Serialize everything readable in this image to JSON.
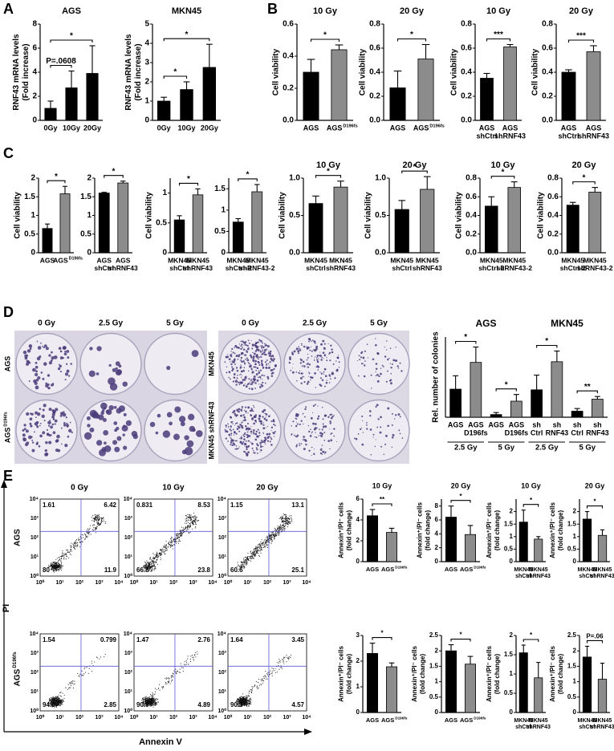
{
  "panel_labels": [
    "A",
    "B",
    "C",
    "D",
    "E"
  ],
  "chart_data": [
    {
      "type": "bar",
      "title": "AGS",
      "y_label": [
        "RNF43 mRNA levels",
        "(Fold increase)"
      ],
      "categories": [
        [
          "0Gy"
        ],
        [
          "10Gy"
        ],
        [
          "20Gy"
        ]
      ],
      "values": [
        1.0,
        2.7,
        3.9
      ],
      "errors": [
        0.6,
        1.4,
        2.3
      ],
      "colors": [
        "#000000",
        "#000000",
        "#000000"
      ],
      "ylim": [
        0,
        8
      ],
      "yticks": [
        0,
        2,
        4,
        6,
        8
      ],
      "annotations": [
        {
          "text": "P=.0608",
          "between": [
            0,
            1
          ]
        },
        {
          "text": "*",
          "between": [
            0,
            2
          ]
        }
      ]
    },
    {
      "type": "bar",
      "title": "MKN45",
      "y_label": [
        "RNF43 mRNA levels",
        "(Fold increase)"
      ],
      "categories": [
        [
          "0Gy"
        ],
        [
          "10Gy"
        ],
        [
          "20Gy"
        ]
      ],
      "values": [
        1.0,
        1.6,
        2.75
      ],
      "errors": [
        0.2,
        0.4,
        1.2
      ],
      "colors": [
        "#000000",
        "#000000",
        "#000000"
      ],
      "ylim": [
        0,
        5
      ],
      "yticks": [
        0,
        1,
        2,
        3,
        4,
        5
      ],
      "annotations": [
        {
          "text": "*",
          "between": [
            0,
            1
          ]
        },
        {
          "text": "*",
          "between": [
            0,
            2
          ]
        }
      ]
    },
    {
      "type": "bar",
      "title": "10 Gy",
      "y_label": [
        "Cell viability"
      ],
      "categories": [
        [
          "AGS"
        ],
        [
          "AGS"
        ]
      ],
      "sup": [
        null,
        "D196fs"
      ],
      "values": [
        0.3,
        0.44
      ],
      "errors": [
        0.08,
        0.03
      ],
      "colors": [
        "#000000",
        "#8c8c8c"
      ],
      "ylim": [
        0,
        0.6
      ],
      "yticks": [
        {
          "value": 0,
          "label": "0.0"
        },
        0.2,
        0.4,
        0.6
      ],
      "annotations": [
        {
          "text": "*",
          "between": [
            0,
            1
          ]
        }
      ]
    },
    {
      "type": "bar",
      "title": "20 Gy",
      "y_label": [
        "Cell viability"
      ],
      "categories": [
        [
          "AGS"
        ],
        [
          "AGS"
        ]
      ],
      "sup": [
        null,
        "D196fs"
      ],
      "values": [
        0.27,
        0.51
      ],
      "errors": [
        0.14,
        0.12
      ],
      "colors": [
        "#000000",
        "#8c8c8c"
      ],
      "ylim": [
        0,
        0.8
      ],
      "yticks": [
        {
          "value": 0,
          "label": "0.0"
        },
        0.2,
        0.4,
        0.6,
        0.8
      ],
      "annotations": [
        {
          "text": "*",
          "between": [
            0,
            1
          ]
        }
      ]
    },
    {
      "type": "bar",
      "title": "10 Gy",
      "y_label": [
        "Cell viability"
      ],
      "categories": [
        [
          "AGS",
          "shCtrl"
        ],
        [
          "AGS",
          "shRNF43"
        ]
      ],
      "values": [
        0.35,
        0.61
      ],
      "errors": [
        0.04,
        0.02
      ],
      "colors": [
        "#000000",
        "#8c8c8c"
      ],
      "ylim": [
        0,
        0.8
      ],
      "yticks": [
        {
          "value": 0,
          "label": "0.0"
        },
        0.2,
        0.4,
        0.6,
        0.8
      ],
      "annotations": [
        {
          "text": "***",
          "between": [
            0,
            1
          ]
        }
      ]
    },
    {
      "type": "bar",
      "title": "20 Gy",
      "y_label": [
        "Cell viability"
      ],
      "categories": [
        [
          "AGS",
          "shCtrl"
        ],
        [
          "AGS",
          "shRNF43"
        ]
      ],
      "values": [
        0.4,
        0.57
      ],
      "errors": [
        0.02,
        0.05
      ],
      "colors": [
        "#000000",
        "#8c8c8c"
      ],
      "ylim": [
        0,
        0.8
      ],
      "yticks": [
        {
          "value": 0,
          "label": "0.0"
        },
        0.2,
        0.4,
        0.6,
        0.8
      ],
      "annotations": [
        {
          "text": "***",
          "between": [
            0,
            1
          ]
        }
      ]
    },
    {
      "type": "bar",
      "y_label": [
        "Cell viability"
      ],
      "categories": [
        [
          "AGS"
        ],
        [
          "AGS"
        ]
      ],
      "sup": [
        null,
        "D196fs"
      ],
      "values": [
        0.65,
        1.58
      ],
      "errors": [
        0.12,
        0.2
      ],
      "colors": [
        "#000000",
        "#8c8c8c"
      ],
      "ylim": [
        0,
        2
      ],
      "yticks": [
        0,
        0.5,
        1,
        1.5,
        2
      ],
      "annotations": [
        {
          "text": "*",
          "between": [
            0,
            1
          ]
        }
      ]
    },
    {
      "type": "bar",
      "categories": [
        [
          "AGS",
          "shCtrl"
        ],
        [
          "AGS",
          "shRNF43"
        ]
      ],
      "values": [
        1.6,
        1.87
      ],
      "errors": [
        0.02,
        0.05
      ],
      "colors": [
        "#000000",
        "#8c8c8c"
      ],
      "ylim": [
        0,
        2
      ],
      "yticks": [
        0,
        0.5,
        1,
        1.5,
        2
      ],
      "annotations": [
        {
          "text": "*",
          "between": [
            0,
            1
          ]
        }
      ]
    },
    {
      "type": "bar",
      "y_label": [
        "Cell viability"
      ],
      "categories": [
        [
          "MKN45",
          "shCtrl"
        ],
        [
          "MKN45",
          "shRNF43"
        ]
      ],
      "values": [
        0.55,
        0.97
      ],
      "errors": [
        0.07,
        0.1
      ],
      "colors": [
        "#000000",
        "#8c8c8c"
      ],
      "ylim": [
        0,
        1.25
      ],
      "yticks": [
        0,
        0.5,
        1
      ],
      "annotations": [
        {
          "text": "*",
          "between": [
            0,
            1
          ]
        }
      ]
    },
    {
      "type": "bar",
      "categories": [
        [
          "MKN45",
          "shCtrl-2"
        ],
        [
          "MKN45",
          "shRNF43-2"
        ]
      ],
      "values": [
        0.72,
        1.43
      ],
      "errors": [
        0.08,
        0.17
      ],
      "colors": [
        "#000000",
        "#8c8c8c"
      ],
      "ylim": [
        0,
        1.75
      ],
      "yticks": [
        0,
        0.5,
        1,
        1.5
      ],
      "annotations": [
        {
          "text": "*",
          "between": [
            0,
            1
          ]
        }
      ]
    },
    {
      "type": "bar",
      "title": "10 Gy",
      "y_label": [
        "Cell viability"
      ],
      "categories": [
        [
          "MKN45",
          "shCtrl"
        ],
        [
          "MKN45",
          "shRNF43"
        ]
      ],
      "values": [
        0.66,
        0.88
      ],
      "errors": [
        0.1,
        0.08
      ],
      "colors": [
        "#000000",
        "#8c8c8c"
      ],
      "ylim": [
        0,
        1
      ],
      "yticks": [
        {
          "value": 0,
          "label": "0.0"
        },
        0.5,
        {
          "value": 1,
          "label": "1.0"
        }
      ],
      "annotations": [
        {
          "text": "*",
          "between": [
            0,
            1
          ]
        }
      ]
    },
    {
      "type": "bar",
      "title": "20 Gy",
      "y_label": [
        "Cell viability"
      ],
      "categories": [
        [
          "MKN45",
          "shCtrl"
        ],
        [
          "MKN45",
          "shRNF43"
        ]
      ],
      "values": [
        0.58,
        0.85
      ],
      "errors": [
        0.12,
        0.17
      ],
      "colors": [
        "#000000",
        "#8c8c8c"
      ],
      "ylim": [
        0,
        1
      ],
      "yticks": [
        {
          "value": 0,
          "label": "0.0"
        },
        0.5,
        {
          "value": 1,
          "label": "1.0"
        }
      ],
      "annotations": [
        {
          "text": "*",
          "between": [
            0,
            1
          ]
        }
      ]
    },
    {
      "type": "bar",
      "title": "10 Gy",
      "y_label": [
        "Cell viability"
      ],
      "categories": [
        [
          "MKN45",
          "shCtrl-2"
        ],
        [
          "MKN45",
          "shRNF43-2"
        ]
      ],
      "values": [
        0.5,
        0.7
      ],
      "errors": [
        0.1,
        0.06
      ],
      "colors": [
        "#000000",
        "#8c8c8c"
      ],
      "ylim": [
        0,
        0.8
      ],
      "yticks": [
        {
          "value": 0,
          "label": "0.0"
        },
        0.2,
        0.4,
        0.6,
        0.8
      ],
      "annotations": [
        {
          "text": "*",
          "between": [
            0,
            1
          ]
        }
      ]
    },
    {
      "type": "bar",
      "title": "20 Gy",
      "y_label": [
        "Cell viability"
      ],
      "categories": [
        [
          "MKN45",
          "shCtrl-2"
        ],
        [
          "MKN45",
          "shRNF43-2"
        ]
      ],
      "values": [
        0.51,
        0.65
      ],
      "errors": [
        0.03,
        0.05
      ],
      "colors": [
        "#000000",
        "#8c8c8c"
      ],
      "ylim": [
        0,
        0.8
      ],
      "yticks": [
        {
          "value": 0,
          "label": "0.0"
        },
        0.2,
        0.4,
        0.6,
        0.8
      ],
      "annotations": [
        {
          "text": "*",
          "between": [
            0,
            1
          ]
        }
      ]
    },
    {
      "type": "bar",
      "title": [
        "AGS",
        "MKN45"
      ],
      "y_label": [
        "Rel. number of colonies"
      ],
      "categories": [
        [
          "AGS"
        ],
        [
          "AGS",
          "D196fs"
        ],
        [
          "AGS"
        ],
        [
          "AGS",
          "D196fs"
        ],
        [
          "sh",
          "Ctrl"
        ],
        [
          "sh",
          "RNF43"
        ],
        [
          "sh",
          "Ctrl"
        ],
        [
          "sh",
          "RNF43"
        ]
      ],
      "group_labels": [
        "2.5 Gy",
        "5 Gy",
        "2.5 Gy",
        "5 Gy"
      ],
      "values": [
        0.42,
        0.82,
        0.04,
        0.24,
        0.41,
        0.83,
        0.09,
        0.27
      ],
      "errors": [
        0.2,
        0.23,
        0.03,
        0.1,
        0.22,
        0.16,
        0.04,
        0.04
      ],
      "colors": [
        "#000000",
        "#8c8c8c",
        "#000000",
        "#8c8c8c",
        "#000000",
        "#8c8c8c",
        "#000000",
        "#8c8c8c"
      ],
      "ylim": [
        0,
        1.2
      ],
      "annotations": [
        {
          "text": "*",
          "between": [
            0,
            1
          ]
        },
        {
          "text": "*",
          "between": [
            2,
            3
          ]
        },
        {
          "text": "*",
          "between": [
            4,
            5
          ]
        },
        {
          "text": "**",
          "between": [
            6,
            7
          ]
        }
      ]
    },
    {
      "type": "bar",
      "title": "10 Gy",
      "y_label": [
        "Annexin⁺/PI⁻ cells",
        "(fold change)"
      ],
      "categories": [
        [
          "AGS"
        ],
        [
          "AGS"
        ]
      ],
      "sup": [
        null,
        "D196fs"
      ],
      "values": [
        4.4,
        2.8
      ],
      "errors": [
        0.6,
        0.4
      ],
      "colors": [
        "#000000",
        "#8c8c8c"
      ],
      "ylim": [
        0,
        6
      ],
      "yticks": [
        0,
        2,
        4,
        6
      ],
      "annotations": [
        {
          "text": "**",
          "between": [
            0,
            1
          ]
        }
      ]
    },
    {
      "type": "bar",
      "title": "20 Gy",
      "y_label": [
        "Annexin⁺/PI⁻ cells",
        "(fold change)"
      ],
      "categories": [
        [
          "AGS"
        ],
        [
          "AGS"
        ]
      ],
      "sup": [
        null,
        "D196fs"
      ],
      "values": [
        6.4,
        3.9
      ],
      "errors": [
        1.6,
        1.3
      ],
      "colors": [
        "#000000",
        "#8c8c8c"
      ],
      "ylim": [
        0,
        9
      ],
      "yticks": [
        0,
        2,
        4,
        6,
        8
      ],
      "annotations": [
        {
          "text": "*",
          "between": [
            0,
            1
          ]
        }
      ]
    },
    {
      "type": "bar",
      "title": "10 Gy",
      "y_label": [
        "Annexin⁺/PI⁻ cells",
        "(fold change)"
      ],
      "categories": [
        [
          "MKN45",
          "shCtrl"
        ],
        [
          "MKN45",
          "shRNF43"
        ]
      ],
      "values": [
        1.58,
        0.9
      ],
      "errors": [
        0.48,
        0.1
      ],
      "colors": [
        "#000000",
        "#8c8c8c"
      ],
      "ylim": [
        0,
        2.5
      ],
      "yticks": [
        0,
        0.5,
        1,
        1.5,
        2
      ],
      "annotations": [
        {
          "text": "*",
          "between": [
            0,
            1
          ]
        }
      ]
    },
    {
      "type": "bar",
      "title": "20 Gy",
      "y_label": [
        "Annexin⁺/PI⁻ cells",
        "(fold change)"
      ],
      "categories": [
        [
          "MKN45",
          "shCtrl"
        ],
        [
          "MKN45",
          "shRNF43"
        ]
      ],
      "values": [
        1.7,
        1.05
      ],
      "errors": [
        0.3,
        0.22
      ],
      "colors": [
        "#000000",
        "#8c8c8c"
      ],
      "ylim": [
        0,
        2.5
      ],
      "yticks": [
        0,
        0.5,
        1,
        1.5,
        2
      ],
      "annotations": [
        {
          "text": "*",
          "between": [
            0,
            1
          ]
        }
      ]
    },
    {
      "type": "bar",
      "y_label": [
        "Annexin⁺/PI⁻ cells",
        "(fold change)"
      ],
      "categories": [
        [
          "AGS"
        ],
        [
          "AGS"
        ]
      ],
      "sup": [
        null,
        "D196fs"
      ],
      "values": [
        2.3,
        1.78
      ],
      "errors": [
        0.4,
        0.15
      ],
      "colors": [
        "#000000",
        "#8c8c8c"
      ],
      "ylim": [
        0,
        3
      ],
      "yticks": [
        0,
        1,
        2,
        3
      ],
      "annotations": [
        {
          "text": "*",
          "between": [
            0,
            1
          ]
        }
      ]
    },
    {
      "type": "bar",
      "y_label": [
        "Annexin⁺/PI⁻ cells",
        "(fold change)"
      ],
      "categories": [
        [
          "AGS"
        ],
        [
          "AGS"
        ]
      ],
      "sup": [
        null,
        "D196fs"
      ],
      "values": [
        2.0,
        1.57
      ],
      "errors": [
        0.2,
        0.25
      ],
      "colors": [
        "#000000",
        "#8c8c8c"
      ],
      "ylim": [
        0,
        2.5
      ],
      "yticks": [
        0,
        0.5,
        1,
        1.5,
        2,
        2.5
      ],
      "annotations": [
        {
          "text": "*",
          "between": [
            0,
            1
          ]
        }
      ]
    },
    {
      "type": "bar",
      "y_label": [
        "Annexin⁺/PI⁻ cells",
        "(fold change)"
      ],
      "categories": [
        [
          "MKN45",
          "shCtrl"
        ],
        [
          "MKN45",
          "shRNF43"
        ]
      ],
      "values": [
        1.55,
        0.9
      ],
      "errors": [
        0.2,
        0.4
      ],
      "colors": [
        "#000000",
        "#8c8c8c"
      ],
      "ylim": [
        0,
        2
      ],
      "yticks": [
        0,
        0.5,
        1,
        1.5,
        2
      ],
      "annotations": [
        {
          "text": "*",
          "between": [
            0,
            1
          ]
        }
      ]
    },
    {
      "type": "bar",
      "y_label": [
        "Annexin⁺/PI⁻ cells",
        "(fold change)"
      ],
      "categories": [
        [
          "MKN45",
          "shCtrl"
        ],
        [
          "MKN45",
          "shRNF43"
        ]
      ],
      "values": [
        1.8,
        1.08
      ],
      "errors": [
        0.35,
        0.52
      ],
      "colors": [
        "#000000",
        "#8c8c8c"
      ],
      "ylim": [
        0,
        2.5
      ],
      "yticks": [
        0,
        0.5,
        1,
        1.5,
        2,
        2.5
      ],
      "annotations": [
        {
          "text": "P=.06",
          "between": [
            0,
            1
          ]
        }
      ]
    }
  ],
  "colonies": [
    {
      "columns": [
        "0 Gy",
        "2.5 Gy",
        "5 Gy"
      ],
      "rows": [
        "AGS",
        "AGS"
      ],
      "row_sup": [
        null,
        "D196fs"
      ]
    },
    {
      "columns": [
        "0 Gy",
        "2.5 Gy",
        "5 Gy"
      ],
      "rows": [
        "MKN45",
        "MKN45 shRNF43"
      ]
    }
  ],
  "flow": {
    "columns": [
      "0 Gy",
      "10 Gy",
      "20 Gy"
    ],
    "rows": [
      "AGS",
      "AGS"
    ],
    "row_sup": [
      null,
      "D196fs"
    ],
    "y_label": "PI",
    "x_label": "Annexin V",
    "tick_labels": [
      "10⁰",
      "10¹",
      "10²",
      "10³",
      "10⁴"
    ],
    "quadrants": [
      [
        [
          1.61,
          6.42,
          80,
          11.9
        ],
        [
          0.831,
          8.53,
          66.8,
          23.8
        ],
        [
          1.15,
          13.1,
          60.6,
          25.1
        ]
      ],
      [
        [
          1.54,
          0.799,
          94.8,
          2.85
        ],
        [
          1.47,
          2.76,
          90.9,
          4.89
        ],
        [
          1.64,
          3.45,
          90.3,
          4.57
        ]
      ]
    ]
  }
}
